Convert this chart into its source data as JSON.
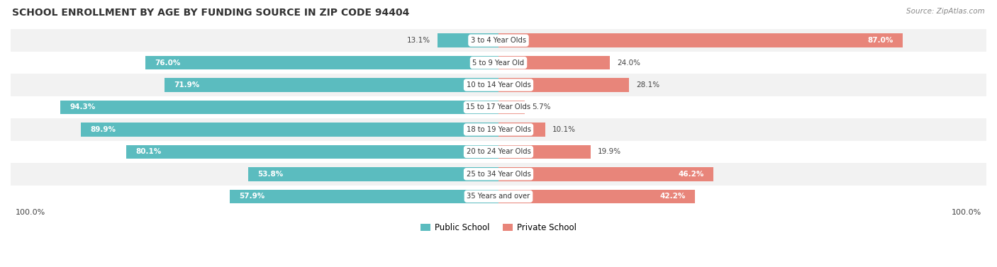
{
  "title": "SCHOOL ENROLLMENT BY AGE BY FUNDING SOURCE IN ZIP CODE 94404",
  "source": "Source: ZipAtlas.com",
  "categories": [
    "3 to 4 Year Olds",
    "5 to 9 Year Old",
    "10 to 14 Year Olds",
    "15 to 17 Year Olds",
    "18 to 19 Year Olds",
    "20 to 24 Year Olds",
    "25 to 34 Year Olds",
    "35 Years and over"
  ],
  "public_pct": [
    13.1,
    76.0,
    71.9,
    94.3,
    89.9,
    80.1,
    53.8,
    57.9
  ],
  "private_pct": [
    87.0,
    24.0,
    28.1,
    5.7,
    10.1,
    19.9,
    46.2,
    42.2
  ],
  "public_color": "#5bbcbf",
  "private_color": "#e8857a",
  "bg_row_even": "#f2f2f2",
  "bg_row_odd": "#ffffff",
  "bg_white": "#ffffff",
  "left_axis_label": "100.0%",
  "right_axis_label": "100.0%",
  "legend_public": "Public School",
  "legend_private": "Private School"
}
